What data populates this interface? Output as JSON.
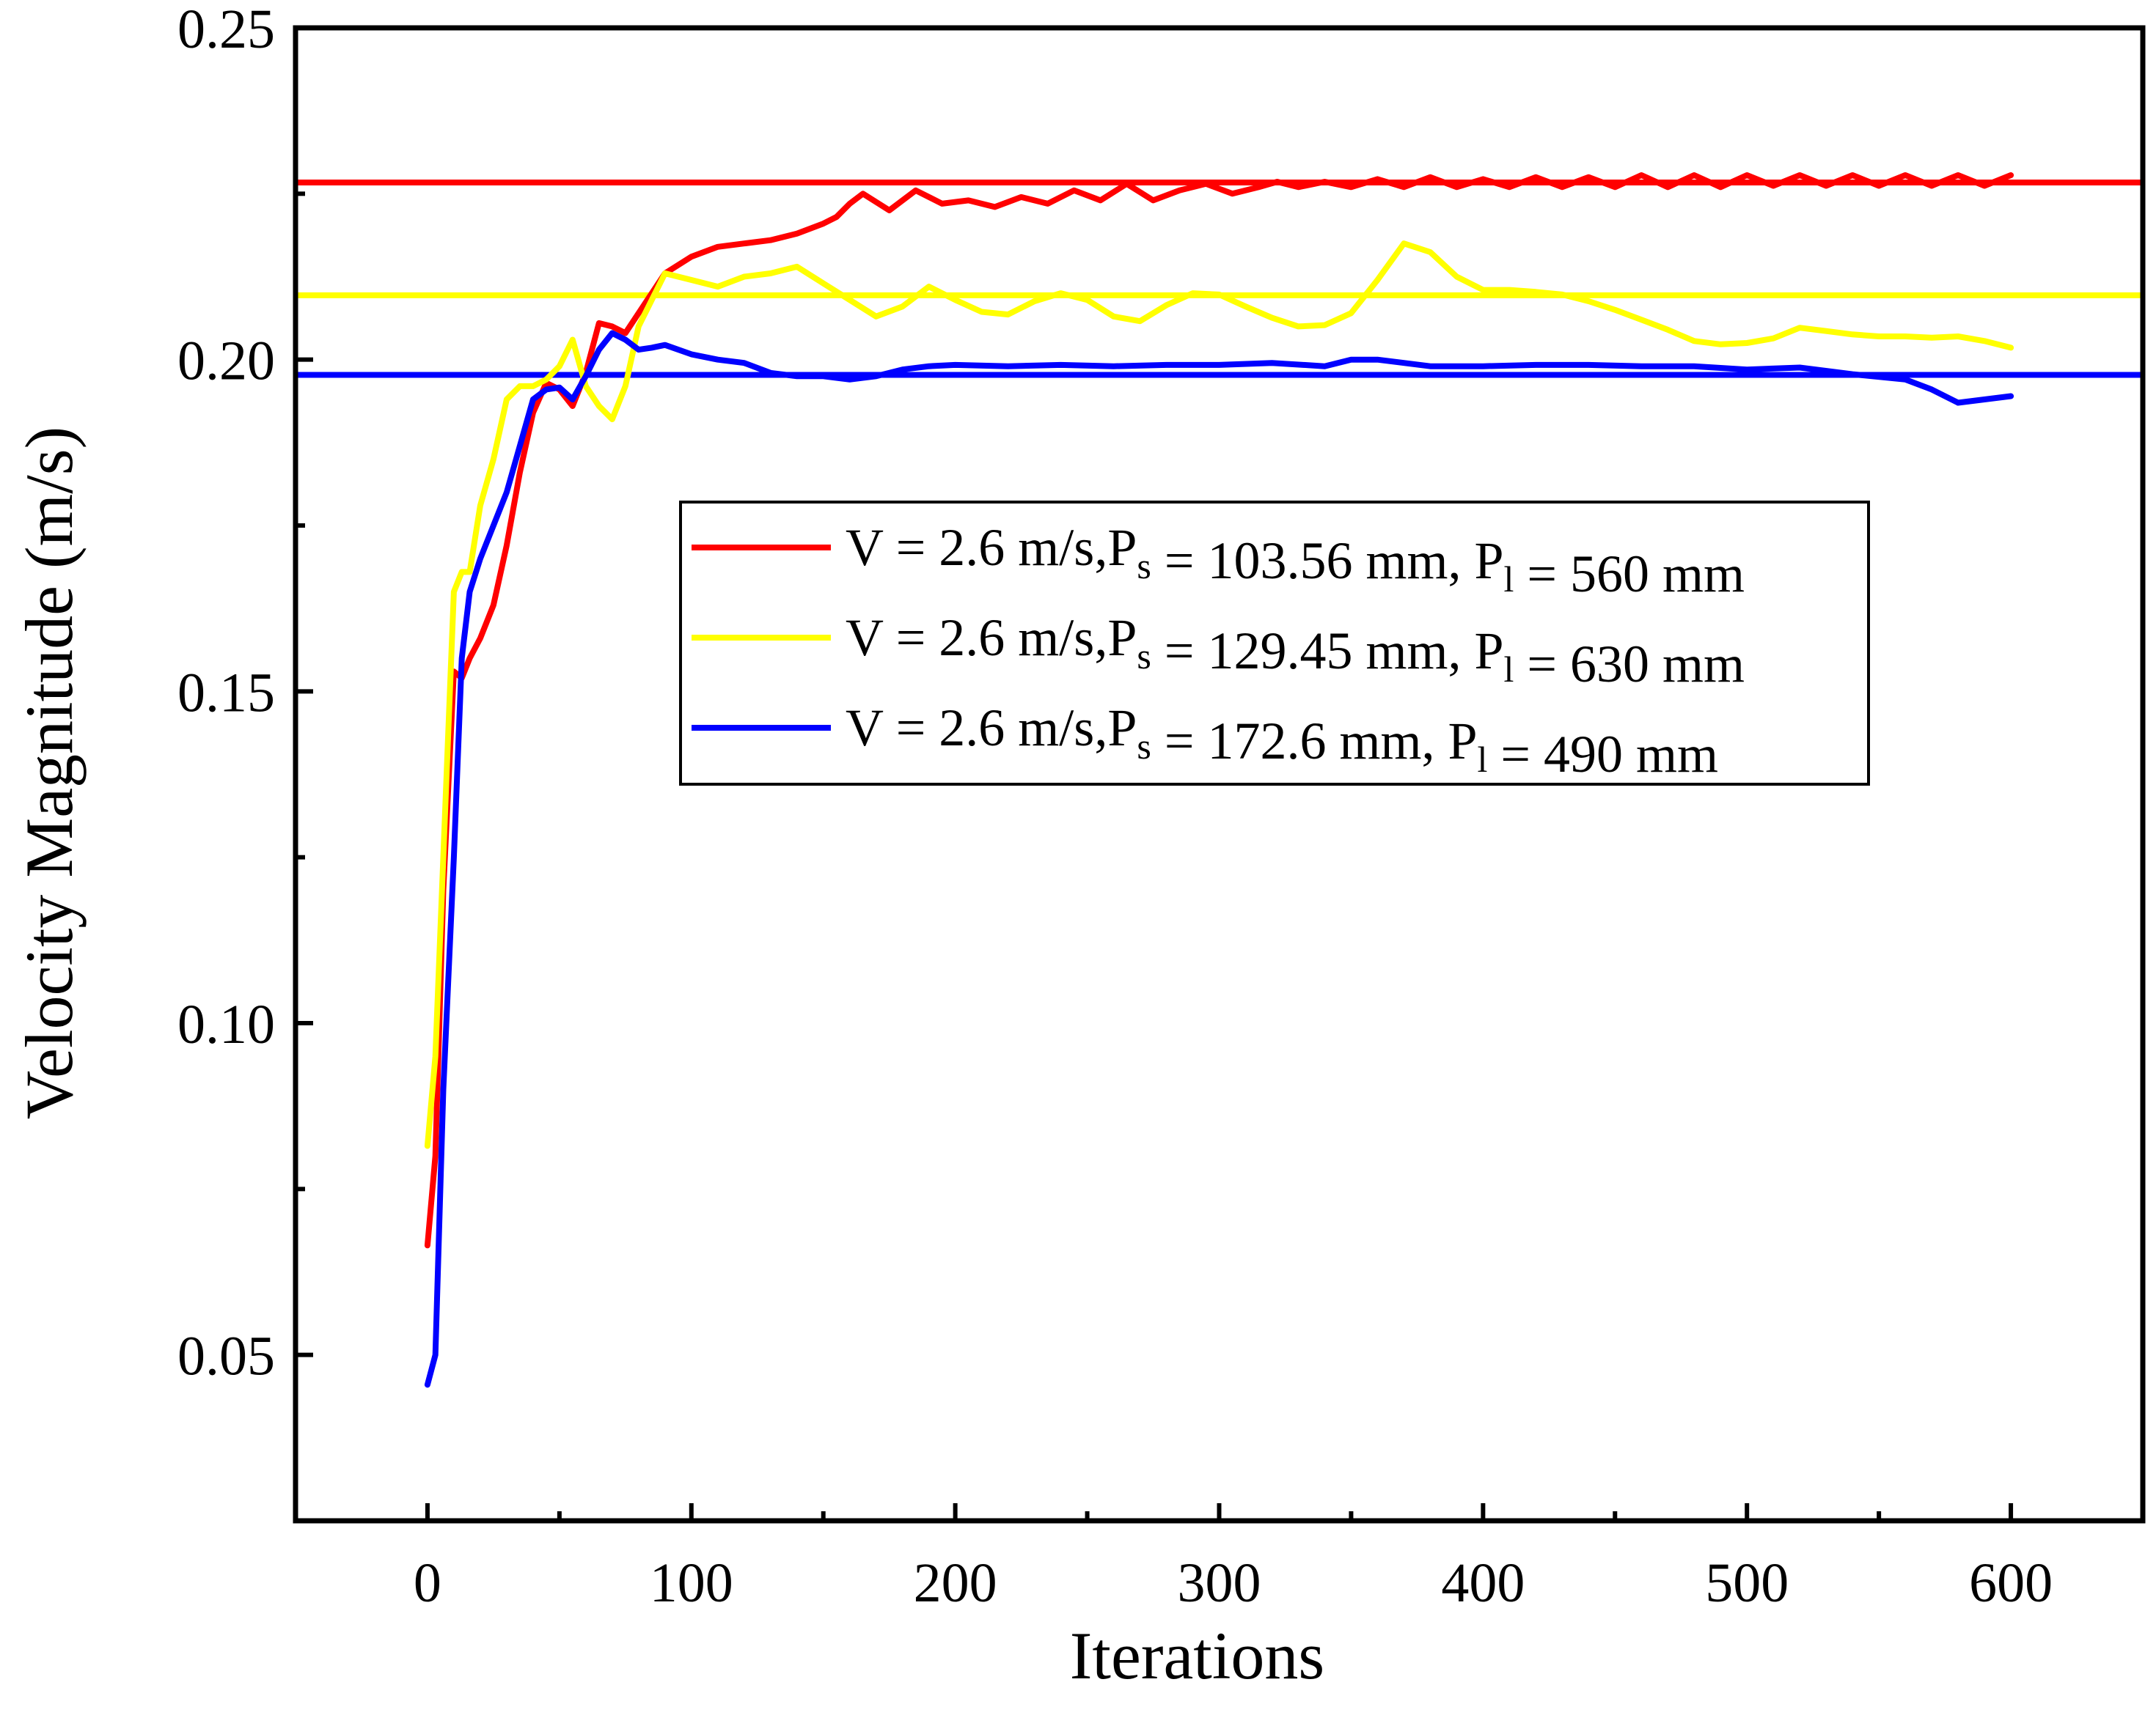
{
  "chart_data": {
    "type": "line",
    "title": "",
    "xlabel": "Iterations",
    "ylabel": "Velocity Magnitude (m/s)",
    "xlim": [
      -50,
      650
    ],
    "ylim": [
      0.025,
      0.25
    ],
    "xticks": [
      0,
      100,
      200,
      300,
      400,
      500,
      600
    ],
    "xtick_labels": [
      "0",
      "100",
      "200",
      "300",
      "400",
      "500",
      "600"
    ],
    "yticks": [
      0.05,
      0.1,
      0.15,
      0.2,
      0.25
    ],
    "ytick_labels": [
      "0.05",
      "0.10",
      "0.15",
      "0.20",
      "0.25"
    ],
    "grid": false,
    "legend_position": "center-right",
    "reference_lines": [
      {
        "series": "red",
        "y": 0.2267
      },
      {
        "series": "yellow",
        "y": 0.2097
      },
      {
        "series": "blue",
        "y": 0.1977
      }
    ],
    "series": [
      {
        "name": "red",
        "color": "#ff0000",
        "legend": {
          "a": "V = 2.6 m/s,P",
          "sub1": "s",
          "b": " = 103.56 mm, P",
          "sub2": "l",
          "c": " = 560 mm"
        },
        "x": [
          0,
          3,
          6,
          10,
          13,
          16,
          20,
          25,
          30,
          35,
          40,
          45,
          50,
          55,
          60,
          65,
          70,
          75,
          80,
          90,
          100,
          110,
          120,
          130,
          140,
          150,
          155,
          160,
          165,
          175,
          185,
          195,
          205,
          215,
          225,
          235,
          245,
          255,
          265,
          275,
          285,
          295,
          305,
          315,
          322,
          330,
          340,
          350,
          360,
          370,
          380,
          390,
          400,
          410,
          420,
          430,
          440,
          450,
          460,
          470,
          480,
          490,
          500,
          510,
          520,
          530,
          540,
          550,
          560,
          570,
          580,
          590,
          600
        ],
        "y": [
          0.0665,
          0.08,
          0.12,
          0.153,
          0.152,
          0.155,
          0.158,
          0.163,
          0.172,
          0.183,
          0.192,
          0.1965,
          0.1955,
          0.193,
          0.198,
          0.2055,
          0.205,
          0.204,
          0.207,
          0.213,
          0.2155,
          0.217,
          0.2175,
          0.218,
          0.219,
          0.2205,
          0.2215,
          0.2235,
          0.225,
          0.2225,
          0.2255,
          0.2235,
          0.224,
          0.223,
          0.2245,
          0.2235,
          0.2255,
          0.224,
          0.2265,
          0.224,
          0.2255,
          0.2265,
          0.225,
          0.226,
          0.2268,
          0.226,
          0.2268,
          0.226,
          0.2272,
          0.226,
          0.2275,
          0.226,
          0.2272,
          0.226,
          0.2275,
          0.226,
          0.2275,
          0.226,
          0.2278,
          0.226,
          0.2278,
          0.226,
          0.2278,
          0.2262,
          0.2278,
          0.2262,
          0.2278,
          0.2262,
          0.2278,
          0.2262,
          0.2278,
          0.2262,
          0.2278
        ]
      },
      {
        "name": "yellow",
        "color": "#ffff00",
        "legend": {
          "a": "V = 2.6 m/s,P",
          "sub1": "s",
          "b": " = 129.45 mm, P",
          "sub2": "l",
          "c": " = 630 mm"
        },
        "x": [
          0,
          3,
          6,
          10,
          13,
          16,
          20,
          25,
          30,
          35,
          40,
          45,
          50,
          55,
          60,
          65,
          70,
          75,
          80,
          90,
          100,
          110,
          120,
          130,
          140,
          150,
          160,
          170,
          180,
          190,
          200,
          210,
          220,
          230,
          240,
          250,
          260,
          270,
          280,
          290,
          300,
          310,
          320,
          330,
          340,
          350,
          360,
          370,
          380,
          390,
          400,
          410,
          420,
          430,
          440,
          450,
          460,
          470,
          480,
          490,
          500,
          510,
          520,
          530,
          540,
          550,
          560,
          570,
          580,
          590,
          600
        ],
        "y": [
          0.0815,
          0.095,
          0.125,
          0.165,
          0.168,
          0.168,
          0.178,
          0.185,
          0.194,
          0.196,
          0.196,
          0.197,
          0.199,
          0.203,
          0.196,
          0.193,
          0.191,
          0.196,
          0.205,
          0.213,
          0.212,
          0.211,
          0.2125,
          0.213,
          0.214,
          0.2115,
          0.209,
          0.2065,
          0.208,
          0.211,
          0.209,
          0.2072,
          0.2068,
          0.2088,
          0.21,
          0.209,
          0.2065,
          0.2058,
          0.2082,
          0.21,
          0.2098,
          0.208,
          0.2063,
          0.205,
          0.2052,
          0.207,
          0.212,
          0.2175,
          0.2162,
          0.2125,
          0.2105,
          0.2105,
          0.2102,
          0.2098,
          0.2088,
          0.2075,
          0.206,
          0.2045,
          0.2028,
          0.2023,
          0.2025,
          0.2032,
          0.2048,
          0.2043,
          0.2038,
          0.2035,
          0.2035,
          0.2033,
          0.2035,
          0.2028,
          0.2018
        ]
      },
      {
        "name": "blue",
        "color": "#0000ff",
        "legend": {
          "a": "V = 2.6 m/s,P",
          "sub1": "s",
          "b": " = 172.6 mm, P",
          "sub2": "l",
          "c": " = 490 mm"
        },
        "x": [
          0,
          3,
          6,
          10,
          13,
          16,
          20,
          25,
          30,
          35,
          40,
          45,
          50,
          55,
          60,
          65,
          70,
          75,
          80,
          85,
          90,
          100,
          110,
          120,
          130,
          140,
          150,
          160,
          170,
          180,
          190,
          200,
          220,
          240,
          260,
          280,
          300,
          320,
          340,
          350,
          360,
          380,
          400,
          420,
          440,
          460,
          480,
          500,
          520,
          540,
          560,
          570,
          580,
          590,
          600
        ],
        "y": [
          0.0455,
          0.05,
          0.09,
          0.125,
          0.155,
          0.165,
          0.17,
          0.175,
          0.18,
          0.187,
          0.194,
          0.1955,
          0.1958,
          0.194,
          0.1975,
          0.2015,
          0.204,
          0.203,
          0.2015,
          0.2018,
          0.2022,
          0.2008,
          0.2,
          0.1995,
          0.198,
          0.1975,
          0.1975,
          0.197,
          0.1975,
          0.1985,
          0.199,
          0.1992,
          0.199,
          0.1992,
          0.199,
          0.1992,
          0.1992,
          0.1995,
          0.199,
          0.2,
          0.2,
          0.199,
          0.199,
          0.1992,
          0.1992,
          0.199,
          0.199,
          0.1985,
          0.1988,
          0.1978,
          0.197,
          0.1955,
          0.1935,
          0.194,
          0.1945
        ]
      }
    ]
  }
}
